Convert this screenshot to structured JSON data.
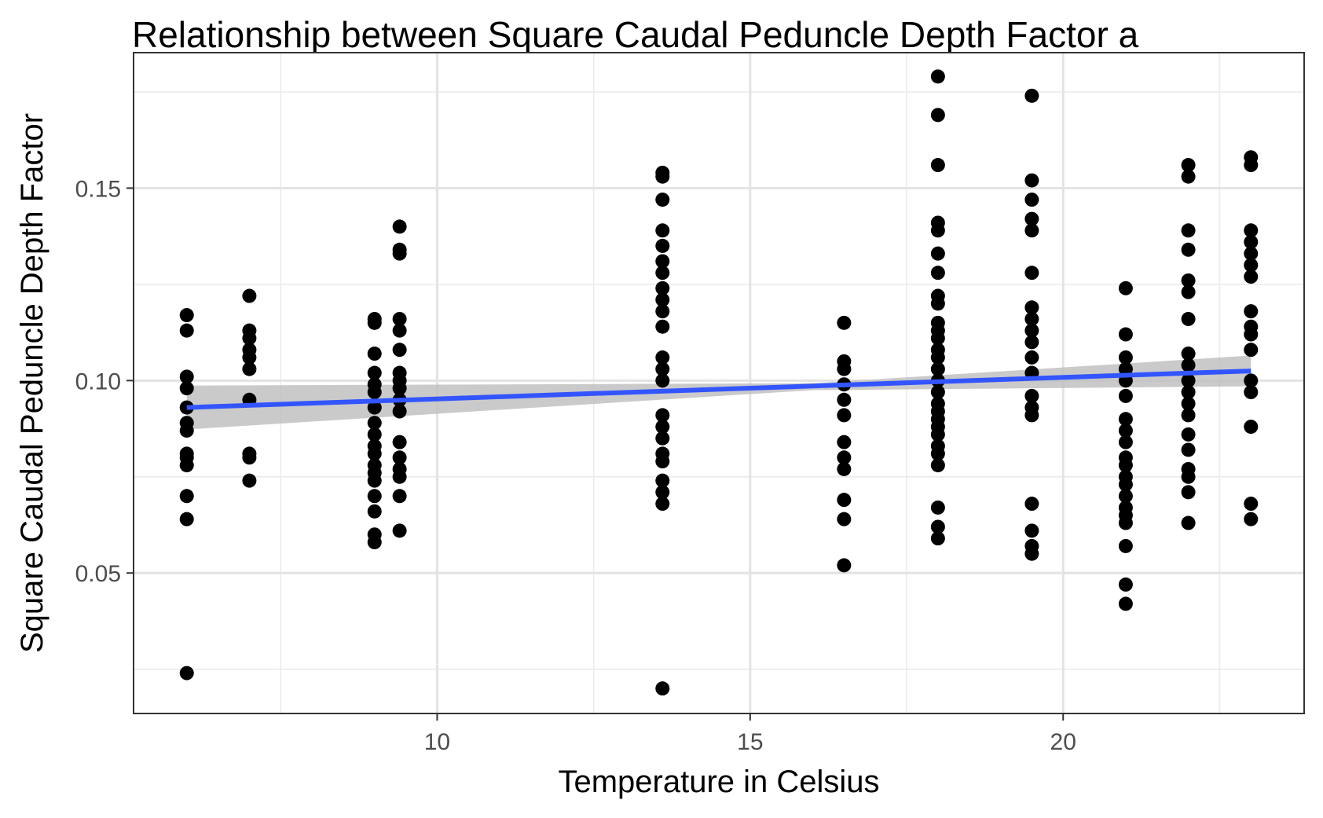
{
  "chart_data": {
    "type": "scatter",
    "title": "Relationship between Square Caudal Peduncle Depth Factor a",
    "xlabel": "Temperature in Celsius",
    "ylabel": "Square Caudal Peduncle Depth Factor",
    "xlim": [
      5.15,
      23.85
    ],
    "ylim": [
      0.0135,
      0.1852
    ],
    "x_ticks": [
      {
        "value": 10,
        "label": "10"
      },
      {
        "value": 15,
        "label": "15"
      },
      {
        "value": 20,
        "label": "20"
      }
    ],
    "y_ticks": [
      {
        "value": 0.05,
        "label": "0.05"
      },
      {
        "value": 0.1,
        "label": "0.10"
      },
      {
        "value": 0.15,
        "label": "0.15"
      }
    ],
    "x_minor": [
      7.5,
      12.5,
      17.5,
      22.5
    ],
    "y_minor": [
      0.025,
      0.075,
      0.125,
      0.175
    ],
    "grid": true,
    "legend": "none",
    "series": [
      {
        "points": [
          [
            6,
            0.117
          ],
          [
            6,
            0.113
          ],
          [
            6,
            0.101
          ],
          [
            6,
            0.098
          ],
          [
            6,
            0.093
          ],
          [
            6,
            0.089
          ],
          [
            6,
            0.087
          ],
          [
            6,
            0.081
          ],
          [
            6,
            0.08
          ],
          [
            6,
            0.078
          ],
          [
            6,
            0.07
          ],
          [
            6,
            0.064
          ],
          [
            6,
            0.024
          ],
          [
            7,
            0.122
          ],
          [
            7,
            0.113
          ],
          [
            7,
            0.111
          ],
          [
            7,
            0.108
          ],
          [
            7,
            0.106
          ],
          [
            7,
            0.103
          ],
          [
            7,
            0.095
          ],
          [
            7,
            0.081
          ],
          [
            7,
            0.08
          ],
          [
            7,
            0.074
          ],
          [
            9,
            0.116
          ],
          [
            9,
            0.115
          ],
          [
            9,
            0.107
          ],
          [
            9,
            0.102
          ],
          [
            9,
            0.099
          ],
          [
            9,
            0.097
          ],
          [
            9,
            0.093
          ],
          [
            9,
            0.089
          ],
          [
            9,
            0.086
          ],
          [
            9,
            0.083
          ],
          [
            9,
            0.081
          ],
          [
            9,
            0.078
          ],
          [
            9,
            0.076
          ],
          [
            9,
            0.074
          ],
          [
            9,
            0.07
          ],
          [
            9,
            0.066
          ],
          [
            9,
            0.06
          ],
          [
            9,
            0.058
          ],
          [
            9.4,
            0.14
          ],
          [
            9.4,
            0.134
          ],
          [
            9.4,
            0.133
          ],
          [
            9.4,
            0.116
          ],
          [
            9.4,
            0.113
          ],
          [
            9.4,
            0.108
          ],
          [
            9.4,
            0.102
          ],
          [
            9.4,
            0.1
          ],
          [
            9.4,
            0.098
          ],
          [
            9.4,
            0.095
          ],
          [
            9.4,
            0.092
          ],
          [
            9.4,
            0.084
          ],
          [
            9.4,
            0.08
          ],
          [
            9.4,
            0.077
          ],
          [
            9.4,
            0.075
          ],
          [
            9.4,
            0.07
          ],
          [
            9.4,
            0.061
          ],
          [
            13.6,
            0.154
          ],
          [
            13.6,
            0.153
          ],
          [
            13.6,
            0.147
          ],
          [
            13.6,
            0.139
          ],
          [
            13.6,
            0.135
          ],
          [
            13.6,
            0.131
          ],
          [
            13.6,
            0.128
          ],
          [
            13.6,
            0.124
          ],
          [
            13.6,
            0.121
          ],
          [
            13.6,
            0.118
          ],
          [
            13.6,
            0.114
          ],
          [
            13.6,
            0.106
          ],
          [
            13.6,
            0.103
          ],
          [
            13.6,
            0.1
          ],
          [
            13.6,
            0.091
          ],
          [
            13.6,
            0.088
          ],
          [
            13.6,
            0.085
          ],
          [
            13.6,
            0.081
          ],
          [
            13.6,
            0.079
          ],
          [
            13.6,
            0.074
          ],
          [
            13.6,
            0.071
          ],
          [
            13.6,
            0.068
          ],
          [
            13.6,
            0.02
          ],
          [
            16.5,
            0.115
          ],
          [
            16.5,
            0.105
          ],
          [
            16.5,
            0.103
          ],
          [
            16.5,
            0.099
          ],
          [
            16.5,
            0.095
          ],
          [
            16.5,
            0.091
          ],
          [
            16.5,
            0.084
          ],
          [
            16.5,
            0.08
          ],
          [
            16.5,
            0.077
          ],
          [
            16.5,
            0.069
          ],
          [
            16.5,
            0.064
          ],
          [
            16.5,
            0.052
          ],
          [
            18,
            0.179
          ],
          [
            18,
            0.169
          ],
          [
            18,
            0.156
          ],
          [
            18,
            0.141
          ],
          [
            18,
            0.139
          ],
          [
            18,
            0.133
          ],
          [
            18,
            0.128
          ],
          [
            18,
            0.122
          ],
          [
            18,
            0.12
          ],
          [
            18,
            0.115
          ],
          [
            18,
            0.113
          ],
          [
            18,
            0.111
          ],
          [
            18,
            0.108
          ],
          [
            18,
            0.106
          ],
          [
            18,
            0.103
          ],
          [
            18,
            0.1
          ],
          [
            18,
            0.097
          ],
          [
            18,
            0.094
          ],
          [
            18,
            0.092
          ],
          [
            18,
            0.09
          ],
          [
            18,
            0.088
          ],
          [
            18,
            0.086
          ],
          [
            18,
            0.083
          ],
          [
            18,
            0.081
          ],
          [
            18,
            0.078
          ],
          [
            18,
            0.067
          ],
          [
            18,
            0.062
          ],
          [
            18,
            0.059
          ],
          [
            19.5,
            0.174
          ],
          [
            19.5,
            0.152
          ],
          [
            19.5,
            0.147
          ],
          [
            19.5,
            0.142
          ],
          [
            19.5,
            0.139
          ],
          [
            19.5,
            0.128
          ],
          [
            19.5,
            0.119
          ],
          [
            19.5,
            0.116
          ],
          [
            19.5,
            0.113
          ],
          [
            19.5,
            0.11
          ],
          [
            19.5,
            0.106
          ],
          [
            19.5,
            0.102
          ],
          [
            19.5,
            0.096
          ],
          [
            19.5,
            0.093
          ],
          [
            19.5,
            0.091
          ],
          [
            19.5,
            0.068
          ],
          [
            19.5,
            0.061
          ],
          [
            19.5,
            0.057
          ],
          [
            19.5,
            0.055
          ],
          [
            21,
            0.124
          ],
          [
            21,
            0.112
          ],
          [
            21,
            0.106
          ],
          [
            21,
            0.103
          ],
          [
            21,
            0.1
          ],
          [
            21,
            0.096
          ],
          [
            21,
            0.09
          ],
          [
            21,
            0.087
          ],
          [
            21,
            0.084
          ],
          [
            21,
            0.08
          ],
          [
            21,
            0.078
          ],
          [
            21,
            0.075
          ],
          [
            21,
            0.073
          ],
          [
            21,
            0.07
          ],
          [
            21,
            0.067
          ],
          [
            21,
            0.065
          ],
          [
            21,
            0.063
          ],
          [
            21,
            0.057
          ],
          [
            21,
            0.047
          ],
          [
            21,
            0.042
          ],
          [
            22,
            0.156
          ],
          [
            22,
            0.153
          ],
          [
            22,
            0.139
          ],
          [
            22,
            0.134
          ],
          [
            22,
            0.126
          ],
          [
            22,
            0.123
          ],
          [
            22,
            0.116
          ],
          [
            22,
            0.107
          ],
          [
            22,
            0.104
          ],
          [
            22,
            0.1
          ],
          [
            22,
            0.097
          ],
          [
            22,
            0.094
          ],
          [
            22,
            0.091
          ],
          [
            22,
            0.086
          ],
          [
            22,
            0.082
          ],
          [
            22,
            0.077
          ],
          [
            22,
            0.075
          ],
          [
            22,
            0.071
          ],
          [
            22,
            0.063
          ],
          [
            23,
            0.158
          ],
          [
            23,
            0.156
          ],
          [
            23,
            0.139
          ],
          [
            23,
            0.136
          ],
          [
            23,
            0.133
          ],
          [
            23,
            0.13
          ],
          [
            23,
            0.127
          ],
          [
            23,
            0.118
          ],
          [
            23,
            0.114
          ],
          [
            23,
            0.112
          ],
          [
            23,
            0.108
          ],
          [
            23,
            0.1
          ],
          [
            23,
            0.097
          ],
          [
            23,
            0.088
          ],
          [
            23,
            0.068
          ],
          [
            23,
            0.064
          ]
        ]
      }
    ],
    "trend_line": {
      "method": "linear fit",
      "x": [
        6,
        23
      ],
      "y": [
        0.093,
        0.1025
      ],
      "ci_lower": [
        0.0873,
        0.0985
      ],
      "ci_upper": [
        0.0987,
        0.1065
      ],
      "ci_mid_lower": 0.0975,
      "ci_mid_upper": 0.0993,
      "ci_mid_x": 16,
      "color": "#3355ff",
      "band_color": "#bdbdbd"
    },
    "point_color": "#000000"
  }
}
